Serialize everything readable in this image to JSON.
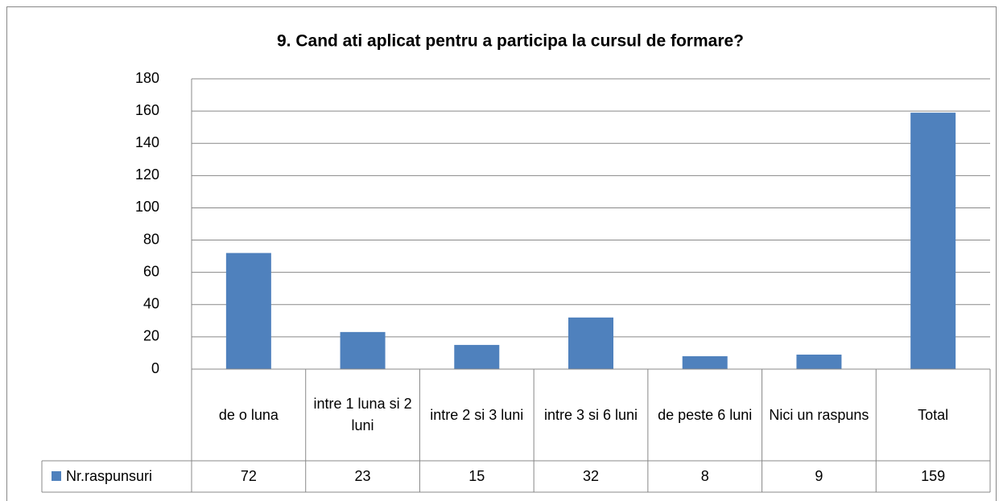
{
  "chart_data": {
    "type": "bar",
    "title": "9. Cand ati aplicat pentru a participa la cursul de formare?",
    "categories": [
      "de o luna",
      "intre 1 luna si 2 luni",
      "intre 2 si 3 luni",
      "intre 3 si 6 luni",
      "de peste 6 luni",
      "Nici un raspuns",
      "Total"
    ],
    "series": [
      {
        "name": "Nr.raspunsuri",
        "color": "#4f81bd",
        "values": [
          72,
          23,
          15,
          32,
          8,
          9,
          159
        ]
      }
    ],
    "ylim": [
      0,
      180
    ],
    "yticks": [
      0,
      20,
      40,
      60,
      80,
      100,
      120,
      140,
      160,
      180
    ],
    "grid": true
  }
}
